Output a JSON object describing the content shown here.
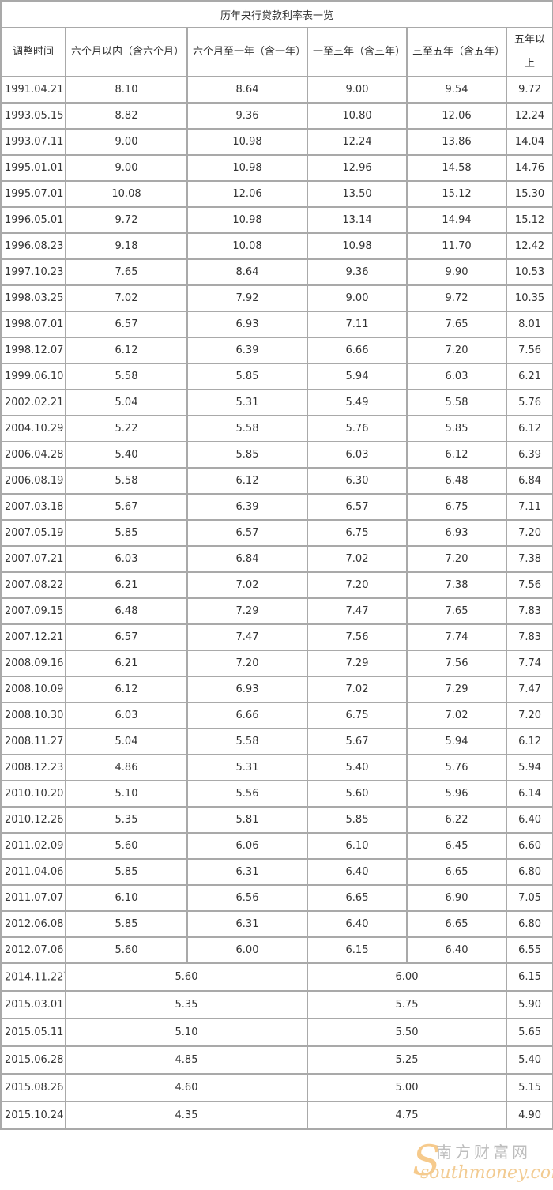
{
  "title": "历年央行贷款利率表一览",
  "headers": [
    "调整时间",
    "六个月以内（含六个月）",
    "六个月至一年（含一年）",
    "一至三年（含三年）",
    "三至五年（含五年）",
    "五年以上"
  ],
  "rows": [
    [
      "1991.04.21",
      "8.10",
      "8.64",
      "9.00",
      "9.54",
      "9.72"
    ],
    [
      "1993.05.15",
      "8.82",
      "9.36",
      "10.80",
      "12.06",
      "12.24"
    ],
    [
      "1993.07.11",
      "9.00",
      "10.98",
      "12.24",
      "13.86",
      "14.04"
    ],
    [
      "1995.01.01",
      "9.00",
      "10.98",
      "12.96",
      "14.58",
      "14.76"
    ],
    [
      "1995.07.01",
      "10.08",
      "12.06",
      "13.50",
      "15.12",
      "15.30"
    ],
    [
      "1996.05.01",
      "9.72",
      "10.98",
      "13.14",
      "14.94",
      "15.12"
    ],
    [
      "1996.08.23",
      "9.18",
      "10.08",
      "10.98",
      "11.70",
      "12.42"
    ],
    [
      "1997.10.23",
      "7.65",
      "8.64",
      "9.36",
      "9.90",
      "10.53"
    ],
    [
      "1998.03.25",
      "7.02",
      "7.92",
      "9.00",
      "9.72",
      "10.35"
    ],
    [
      "1998.07.01",
      "6.57",
      "6.93",
      "7.11",
      "7.65",
      "8.01"
    ],
    [
      "1998.12.07",
      "6.12",
      "6.39",
      "6.66",
      "7.20",
      "7.56"
    ],
    [
      "1999.06.10",
      "5.58",
      "5.85",
      "5.94",
      "6.03",
      "6.21"
    ],
    [
      "2002.02.21",
      "5.04",
      "5.31",
      "5.49",
      "5.58",
      "5.76"
    ],
    [
      "2004.10.29",
      "5.22",
      "5.58",
      "5.76",
      "5.85",
      "6.12"
    ],
    [
      "2006.04.28",
      "5.40",
      "5.85",
      "6.03",
      "6.12",
      "6.39"
    ],
    [
      "2006.08.19",
      "5.58",
      "6.12",
      "6.30",
      "6.48",
      "6.84"
    ],
    [
      "2007.03.18",
      "5.67",
      "6.39",
      "6.57",
      "6.75",
      "7.11"
    ],
    [
      "2007.05.19",
      "5.85",
      "6.57",
      "6.75",
      "6.93",
      "7.20"
    ],
    [
      "2007.07.21",
      "6.03",
      "6.84",
      "7.02",
      "7.20",
      "7.38"
    ],
    [
      "2007.08.22",
      "6.21",
      "7.02",
      "7.20",
      "7.38",
      "7.56"
    ],
    [
      "2007.09.15",
      "6.48",
      "7.29",
      "7.47",
      "7.65",
      "7.83"
    ],
    [
      "2007.12.21",
      "6.57",
      "7.47",
      "7.56",
      "7.74",
      "7.83"
    ],
    [
      "2008.09.16",
      "6.21",
      "7.20",
      "7.29",
      "7.56",
      "7.74"
    ],
    [
      "2008.10.09",
      "6.12",
      "6.93",
      "7.02",
      "7.29",
      "7.47"
    ],
    [
      "2008.10.30",
      "6.03",
      "6.66",
      "6.75",
      "7.02",
      "7.20"
    ],
    [
      "2008.11.27",
      "5.04",
      "5.58",
      "5.67",
      "5.94",
      "6.12"
    ],
    [
      "2008.12.23",
      "4.86",
      "5.31",
      "5.40",
      "5.76",
      "5.94"
    ],
    [
      "2010.10.20",
      "5.10",
      "5.56",
      "5.60",
      "5.96",
      "6.14"
    ],
    [
      "2010.12.26",
      "5.35",
      "5.81",
      "5.85",
      "6.22",
      "6.40"
    ],
    [
      "2011.02.09",
      "5.60",
      "6.06",
      "6.10",
      "6.45",
      "6.60"
    ],
    [
      "2011.04.06",
      "5.85",
      "6.31",
      "6.40",
      "6.65",
      "6.80"
    ],
    [
      "2011.07.07",
      "6.10",
      "6.56",
      "6.65",
      "6.90",
      "7.05"
    ],
    [
      "2012.06.08",
      "5.85",
      "6.31",
      "6.40",
      "6.65",
      "6.80"
    ],
    [
      "2012.07.06",
      "5.60",
      "6.00",
      "6.15",
      "6.40",
      "6.55"
    ]
  ],
  "merged_rows": [
    {
      "date": "2014.11.22",
      "note": "*",
      "within_one_year": "5.60",
      "one_to_five": "6.00",
      "over_five": "6.15"
    },
    {
      "date": "2015.03.01",
      "within_one_year": "5.35",
      "one_to_five": "5.75",
      "over_five": "5.90"
    },
    {
      "date": "2015.05.11",
      "within_one_year": "5.10",
      "one_to_five": "5.50",
      "over_five": "5.65"
    },
    {
      "date": "2015.06.28",
      "within_one_year": "4.85",
      "one_to_five": "5.25",
      "over_five": "5.40"
    },
    {
      "date": "2015.08.26",
      "within_one_year": "4.60",
      "one_to_five": "5.00",
      "over_five": "5.15"
    },
    {
      "date": "2015.10.24",
      "within_one_year": "4.35",
      "one_to_five": "4.75",
      "over_five": "4.90"
    }
  ],
  "watermark": {
    "cn": "南方财富网",
    "en": "southmoney.com"
  },
  "colors": {
    "border": "#a9a9a9",
    "text": "#333333",
    "watermark": "#f0a030"
  }
}
